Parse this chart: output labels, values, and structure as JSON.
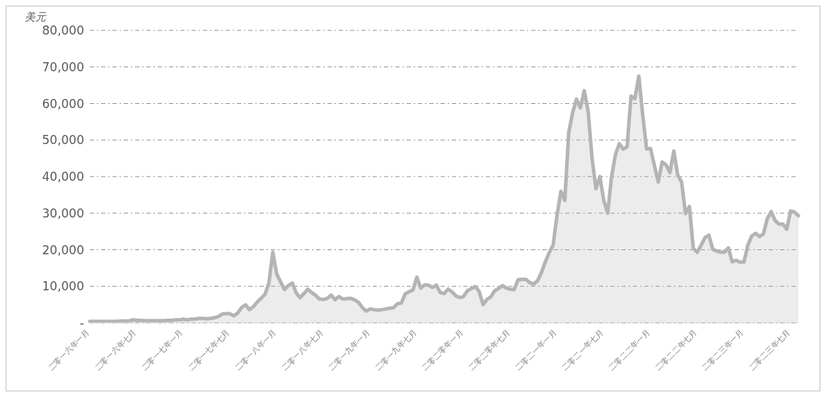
{
  "chart_data": {
    "type": "area",
    "ylabel": "美元",
    "categories": [
      "二零一六年一月",
      null,
      null,
      null,
      null,
      null,
      null,
      null,
      null,
      null,
      null,
      null,
      "二零一六年七月",
      null,
      null,
      null,
      null,
      null,
      null,
      null,
      null,
      null,
      null,
      null,
      "二零一七年一月",
      null,
      null,
      null,
      null,
      null,
      null,
      null,
      null,
      null,
      null,
      null,
      "二零一七年七月",
      null,
      null,
      null,
      null,
      null,
      null,
      null,
      null,
      null,
      null,
      null,
      "二零一八年一月",
      null,
      null,
      null,
      null,
      null,
      null,
      null,
      null,
      null,
      null,
      null,
      "二零一八年七月",
      null,
      null,
      null,
      null,
      null,
      null,
      null,
      null,
      null,
      null,
      null,
      "二零一九年一月",
      null,
      null,
      null,
      null,
      null,
      null,
      null,
      null,
      null,
      null,
      null,
      "二零一九年七月",
      null,
      null,
      null,
      null,
      null,
      null,
      null,
      null,
      null,
      null,
      null,
      "二零二零年一月",
      null,
      null,
      null,
      null,
      null,
      null,
      null,
      null,
      null,
      null,
      null,
      "二零二零年七月",
      null,
      null,
      null,
      null,
      null,
      null,
      null,
      null,
      null,
      null,
      null,
      "二零二一年一月",
      null,
      null,
      null,
      null,
      null,
      null,
      null,
      null,
      null,
      null,
      null,
      "二零二一年七月",
      null,
      null,
      null,
      null,
      null,
      null,
      null,
      null,
      null,
      null,
      null,
      "二零二二年一月",
      null,
      null,
      null,
      null,
      null,
      null,
      null,
      null,
      null,
      null,
      null,
      "二零二二年七月",
      null,
      null,
      null,
      null,
      null,
      null,
      null,
      null,
      null,
      null,
      null,
      "二零二三年一月",
      null,
      null,
      null,
      null,
      null,
      null,
      null,
      null,
      null,
      null,
      null,
      "二零二三年七月",
      null,
      null
    ],
    "series": [
      {
        "color": "#b4b4b5",
        "values": [
          400,
          400,
          400,
          400,
          400,
          400,
          400,
          400,
          500,
          500,
          500,
          800,
          700,
          700,
          600,
          600,
          600,
          600,
          600,
          600,
          700,
          700,
          800,
          800,
          1000,
          800,
          1000,
          1000,
          1200,
          1200,
          1100,
          1200,
          1400,
          1700,
          2400,
          2500,
          2500,
          1900,
          2700,
          4200,
          4900,
          3600,
          4400,
          5700,
          6700,
          7800,
          10900,
          19300,
          13400,
          11200,
          9100,
          10200,
          10900,
          8200,
          6900,
          8000,
          9200,
          8300,
          7500,
          6500,
          6400,
          6700,
          7600,
          6300,
          7200,
          6500,
          6600,
          6700,
          6300,
          5600,
          4200,
          3200,
          3800,
          3600,
          3500,
          3600,
          3800,
          4000,
          4100,
          5200,
          5400,
          7900,
          8500,
          9000,
          12500,
          9500,
          10400,
          10300,
          9700,
          10300,
          8300,
          8000,
          9200,
          8500,
          7400,
          6900,
          7200,
          8800,
          9400,
          9900,
          8600,
          5000,
          6400,
          7100,
          8800,
          9400,
          10200,
          9500,
          9200,
          9100,
          11800,
          11900,
          11900,
          11000,
          10600,
          11500,
          13800,
          16700,
          19200,
          21300,
          29400,
          36000,
          33500,
          52000,
          57500,
          61200,
          58800,
          63500,
          57800,
          45000,
          36700,
          40000,
          33500,
          30000,
          39900,
          46000,
          49000,
          47500,
          48200,
          62000,
          61300,
          67500,
          57000,
          47600,
          47700,
          43100,
          38500,
          44000,
          43200,
          41100,
          47000,
          40400,
          38500,
          29900,
          31800,
          20400,
          19300,
          21200,
          23300,
          24000,
          20100,
          19700,
          19300,
          19300,
          20500,
          16700,
          17100,
          16600,
          16600,
          21200,
          23700,
          24500,
          23600,
          24300,
          28500,
          30400,
          28000,
          27000,
          27000,
          25600,
          30600,
          30300,
          29300
        ]
      }
    ],
    "ylim": [
      0,
      80000
    ],
    "yticks": [
      {
        "value": 0,
        "label": "-"
      },
      {
        "value": 10000,
        "label": "10,000"
      },
      {
        "value": 20000,
        "label": "20,000"
      },
      {
        "value": 30000,
        "label": "30,000"
      },
      {
        "value": 40000,
        "label": "40,000"
      },
      {
        "value": 50000,
        "label": "50,000"
      },
      {
        "value": 60000,
        "label": "60,000"
      },
      {
        "value": 70000,
        "label": "70,000"
      },
      {
        "value": 80000,
        "label": "80,000"
      }
    ],
    "grid": "y"
  }
}
